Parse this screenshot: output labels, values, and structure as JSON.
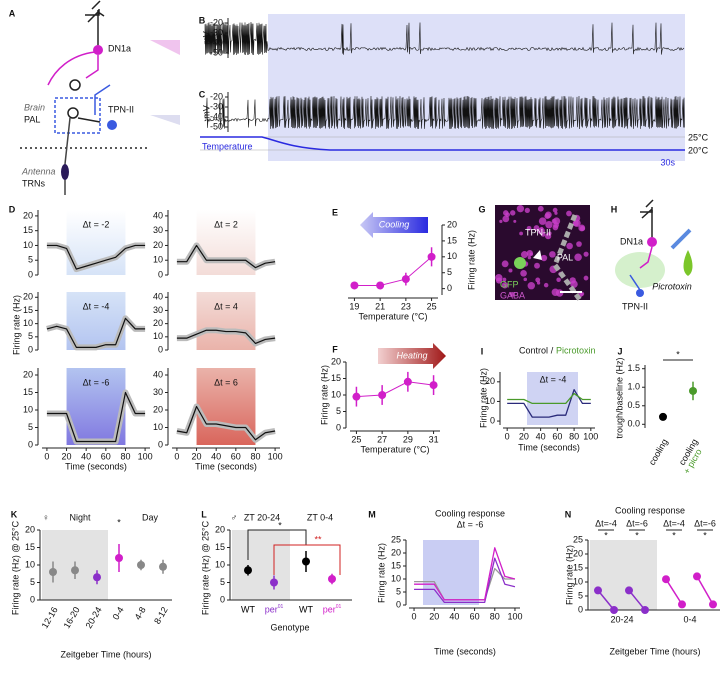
{
  "panels": {
    "A": {
      "label": "A",
      "dn1a": "DN1a",
      "brain": "Brain",
      "pal": "PAL",
      "tpn": "TPN-II",
      "antenna": "Antenna",
      "trns": "TRNs"
    },
    "B": {
      "label": "B",
      "unit": "mV",
      "yticks": [
        -20,
        -30,
        -40,
        -50
      ],
      "ylim": [
        -55,
        -15
      ]
    },
    "C": {
      "label": "C",
      "unit": "mV",
      "yticks": [
        -20,
        -30,
        -40,
        -50
      ],
      "ylim": [
        -55,
        -15
      ],
      "temperature": "Temperature",
      "temp_high": "25°C",
      "temp_low": "20°C",
      "scale": "30s"
    },
    "D": {
      "label": "D",
      "xticks": [
        0,
        20,
        40,
        60,
        80,
        100
      ],
      "xlim": [
        -5,
        105
      ],
      "xlabel": "Time (seconds)",
      "ylabel": "Firing rate (Hz)",
      "plots": [
        {
          "delta": "Δt = -2",
          "yticks": [
            0,
            5,
            10,
            15,
            20
          ],
          "ylim": [
            0,
            22
          ],
          "values": [
            10,
            10,
            9,
            2,
            3,
            4,
            5,
            6,
            9,
            10,
            10
          ]
        },
        {
          "delta": "Δt = -4",
          "yticks": [
            0,
            5,
            10,
            15,
            20
          ],
          "ylim": [
            0,
            22
          ],
          "values": [
            8,
            9,
            8,
            1,
            1,
            1,
            2,
            2,
            12,
            8,
            8
          ]
        },
        {
          "delta": "Δt = -6",
          "yticks": [
            0,
            5,
            10,
            15,
            20
          ],
          "ylim": [
            0,
            22
          ],
          "values": [
            9,
            9,
            9,
            1,
            1,
            1,
            1,
            1,
            15,
            9,
            9
          ]
        },
        {
          "delta": "Δt = 2",
          "yticks": [
            0,
            10,
            20,
            30,
            40
          ],
          "ylim": [
            0,
            44
          ],
          "values": [
            9,
            9,
            20,
            10,
            10,
            10,
            10,
            10,
            5,
            8,
            9
          ]
        },
        {
          "delta": "Δt = 4",
          "yticks": [
            0,
            10,
            20,
            30,
            40
          ],
          "ylim": [
            0,
            44
          ],
          "values": [
            9,
            9,
            12,
            15,
            15,
            14,
            14,
            13,
            5,
            8,
            9
          ]
        },
        {
          "delta": "Δt = 6",
          "yticks": [
            0,
            10,
            20,
            30,
            40
          ],
          "ylim": [
            0,
            44
          ],
          "values": [
            8,
            7,
            22,
            12,
            12,
            11,
            10,
            10,
            3,
            7,
            8
          ]
        }
      ]
    },
    "E": {
      "label": "E",
      "arrow": "Cooling",
      "xticks": [
        19,
        21,
        23,
        25
      ],
      "xlim": [
        18.5,
        25.5
      ],
      "yticks": [
        0,
        5,
        10,
        15,
        20
      ],
      "ylim": [
        -2,
        20
      ],
      "means": [
        1,
        1,
        3,
        10
      ],
      "errors": [
        1,
        1,
        2,
        3
      ],
      "xlabel": "Temperature (°C)",
      "ylabel": "Firing rate (Hz)",
      "color": "#d11fc9"
    },
    "F": {
      "label": "F",
      "arrow": "Heating",
      "xticks": [
        25,
        27,
        29,
        31
      ],
      "xlim": [
        24.5,
        31.5
      ],
      "yticks": [
        0,
        5,
        10,
        15,
        20
      ],
      "ylim": [
        0,
        20
      ],
      "means": [
        9.5,
        10,
        14,
        13
      ],
      "errors": [
        3,
        3,
        3,
        3
      ],
      "xlabel": "Temperature (°C)",
      "ylabel": "Firing rate (Hz)",
      "color": "#d11fc9"
    },
    "G": {
      "label": "G",
      "tpn": "TPN-II",
      "pal": "PAL",
      "gfp": "GFP",
      "gaba": "GABA"
    },
    "H": {
      "label": "H",
      "dn1a": "DN1a",
      "drug": "Picrotoxin",
      "tpn": "TPN-II"
    },
    "I": {
      "label": "I",
      "separator": "/",
      "delta": "Δt = -4",
      "xticks": [
        0,
        20,
        40,
        60,
        80,
        100
      ],
      "xlim": [
        -5,
        105
      ],
      "yticks": [
        0,
        10,
        20
      ],
      "ylim": [
        -2,
        25
      ],
      "xlabel": "Time (seconds)",
      "ylabel": "Firing rate (Hz)",
      "series": [
        {
          "name": "Control",
          "color": "#2a2a7a",
          "values": [
            9,
            9,
            9,
            2,
            2,
            2,
            3,
            3,
            16,
            9,
            9
          ]
        },
        {
          "name": "Picrotoxin",
          "color": "#4a9a2a",
          "values": [
            11,
            11,
            11,
            9,
            9,
            9,
            9,
            9,
            14,
            11,
            11
          ]
        }
      ]
    },
    "J": {
      "label": "J",
      "yticks": [
        {
          "value": 0,
          "label": "0.0"
        },
        {
          "value": 0.5,
          "label": "0.5"
        },
        {
          "value": 1,
          "label": "1.0"
        },
        {
          "value": 1.5,
          "label": "1.5"
        }
      ],
      "ylim": [
        -0.1,
        1.6
      ],
      "ylabel": "trough/baseline (Hz)",
      "categories": [
        "cooling",
        "cooling"
      ],
      "picro": "+ picro",
      "means": [
        0.2,
        0.9
      ],
      "errors": [
        0.1,
        0.25
      ],
      "colors": [
        "#000000",
        "#4a9a2a"
      ],
      "sig": "*"
    },
    "K": {
      "label": "K",
      "symbol": "♀",
      "night": "Night",
      "day": "Day",
      "sig": "*",
      "categories": [
        "12-16",
        "16-20",
        "20-24",
        "0-4",
        "4-8",
        "8-12"
      ],
      "means": [
        8,
        8.5,
        6.5,
        12,
        10,
        9.5
      ],
      "errors": [
        3,
        2.5,
        2,
        4,
        1.5,
        2
      ],
      "colors": [
        "#888888",
        "#888888",
        "#8b2fc9",
        "#d11fc9",
        "#888888",
        "#888888"
      ],
      "yticks": [
        0,
        5,
        10,
        15,
        20
      ],
      "ylim": [
        0,
        20
      ],
      "xlabel": "Zeitgeber Time (hours)",
      "ylabel": "Firing rate (Hz) @ 25°C"
    },
    "L": {
      "label": "L",
      "symbol": "♂",
      "groups": [
        "ZT 20-24",
        "ZT 0-4"
      ],
      "categories": [
        "WT",
        "per",
        "WT",
        "per"
      ],
      "allele": "01",
      "means": [
        8.5,
        5,
        11,
        6
      ],
      "errors": [
        1.5,
        2,
        3,
        1.5
      ],
      "colors": [
        "#000000",
        "#8b2fc9",
        "#000000",
        "#d11fc9"
      ],
      "sig": [
        "*",
        "**"
      ],
      "yticks": [
        0,
        5,
        10,
        15,
        20
      ],
      "ylim": [
        0,
        20
      ],
      "xlabel": "Genotype",
      "ylabel": "Firing rate (Hz) @ 25°C"
    },
    "M": {
      "label": "M",
      "title": "Cooling response",
      "delta": "Δt = -6",
      "xticks": [
        0,
        20,
        40,
        60,
        80,
        100
      ],
      "xlim": [
        -5,
        105
      ],
      "yticks": [
        0,
        5,
        10,
        15,
        20,
        25
      ],
      "ylim": [
        0,
        25
      ],
      "xlabel": "Time (seconds)",
      "ylabel": "Firing rate (Hz)",
      "series": [
        {
          "color": "#999999",
          "values": [
            9,
            9,
            9,
            2,
            2,
            2,
            2,
            2,
            14,
            10,
            10
          ]
        },
        {
          "color": "#8b2fc9",
          "values": [
            6,
            6,
            6,
            1,
            1,
            1,
            1,
            1,
            18,
            8,
            7
          ]
        },
        {
          "color": "#d11fc9",
          "values": [
            8,
            8,
            8,
            2,
            2,
            2,
            2,
            2,
            22,
            11,
            10
          ]
        }
      ]
    },
    "N": {
      "label": "N",
      "title": "Cooling response",
      "deltas": [
        "Δt=-4",
        "Δt=-6",
        "Δt=-4",
        "Δt=-6"
      ],
      "sig": "*",
      "groups": [
        "20-24",
        "0-4"
      ],
      "baseline": [
        7,
        7,
        11,
        12
      ],
      "cooling": [
        0,
        0,
        2,
        2
      ],
      "colors": [
        "#8b2fc9",
        "#8b2fc9",
        "#d11fc9",
        "#d11fc9"
      ],
      "yticks": [
        0,
        5,
        10,
        15,
        20,
        25
      ],
      "ylim": [
        0,
        25
      ],
      "xlabel": "Zeitgeber Time (hours)",
      "ylabel": "Firing rate (Hz)"
    }
  }
}
